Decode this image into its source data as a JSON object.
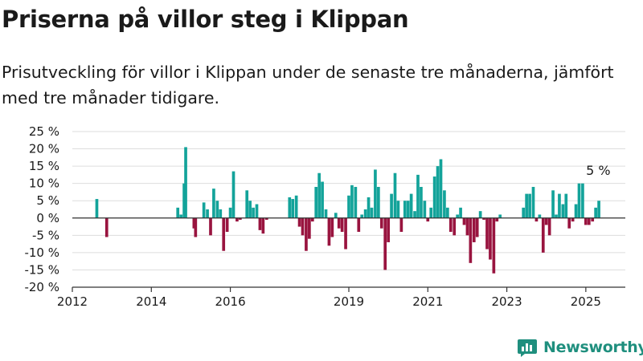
{
  "title": "Priserna på villor steg i Klippan",
  "subtitle": "Prisutveckling för villor i Klippan under de senaste tre månaderna, jämfört med tre månader tidigare.",
  "logo_text": "Newsworthy",
  "colors": {
    "positive": "#13a39a",
    "negative": "#99143f",
    "grid": "#dddddd",
    "axis": "#333333",
    "brand": "#1f8f7e"
  },
  "chart_data": {
    "type": "bar",
    "ylim": [
      -20,
      25
    ],
    "yticks": [
      -20,
      -15,
      -10,
      -5,
      0,
      5,
      10,
      15,
      20,
      25
    ],
    "ytick_labels": [
      "-20 %",
      "-15 %",
      "-10 %",
      "-5 %",
      "0 %",
      "5 %",
      "10 %",
      "15 %",
      "20 %",
      "25 %"
    ],
    "xlim": [
      2012.0,
      2026.0
    ],
    "xticks": [
      2012,
      2014,
      2016,
      2019,
      2021,
      2023,
      2025
    ],
    "xtick_labels": [
      "2012",
      "2014",
      "2016",
      "2019",
      "2021",
      "2023",
      "2025"
    ],
    "grid": true,
    "annotation": {
      "text": "5 %",
      "x": 2025.33,
      "y": 5
    },
    "x": [
      2012.62,
      2012.87,
      2014.67,
      2014.75,
      2014.83,
      2014.87,
      2014.92,
      2015.08,
      2015.12,
      2015.33,
      2015.42,
      2015.5,
      2015.58,
      2015.67,
      2015.75,
      2015.83,
      2015.92,
      2016.0,
      2016.08,
      2016.17,
      2016.25,
      2016.42,
      2016.5,
      2016.58,
      2016.67,
      2016.75,
      2016.83,
      2016.92,
      2017.5,
      2017.58,
      2017.67,
      2017.75,
      2017.83,
      2017.92,
      2018.0,
      2018.08,
      2018.17,
      2018.25,
      2018.33,
      2018.42,
      2018.5,
      2018.58,
      2018.67,
      2018.75,
      2018.83,
      2018.92,
      2019.0,
      2019.08,
      2019.17,
      2019.25,
      2019.33,
      2019.42,
      2019.5,
      2019.58,
      2019.67,
      2019.75,
      2019.83,
      2019.92,
      2020.0,
      2020.08,
      2020.17,
      2020.25,
      2020.33,
      2020.42,
      2020.5,
      2020.58,
      2020.67,
      2020.75,
      2020.83,
      2020.92,
      2021.0,
      2021.08,
      2021.17,
      2021.25,
      2021.33,
      2021.42,
      2021.5,
      2021.58,
      2021.67,
      2021.75,
      2021.83,
      2021.92,
      2022.0,
      2022.08,
      2022.17,
      2022.25,
      2022.33,
      2022.42,
      2022.5,
      2022.58,
      2022.67,
      2022.75,
      2022.83,
      2023.42,
      2023.5,
      2023.58,
      2023.67,
      2023.75,
      2023.83,
      2023.92,
      2024.0,
      2024.08,
      2024.17,
      2024.25,
      2024.33,
      2024.42,
      2024.5,
      2024.58,
      2024.67,
      2024.75,
      2024.83,
      2024.92,
      2025.0,
      2025.08,
      2025.17,
      2025.25,
      2025.33
    ],
    "values": [
      5.5,
      -5.5,
      3,
      1,
      10,
      20.5,
      0,
      -3,
      -5.5,
      4.5,
      2.5,
      -5,
      8.5,
      5,
      2.5,
      -9.5,
      -4,
      3,
      13.5,
      -1,
      -0.5,
      8,
      5,
      3,
      4,
      -3.5,
      -4.5,
      -0.5,
      6,
      5.5,
      6.5,
      -2.5,
      -5,
      -9.5,
      -6,
      -1,
      9,
      13,
      10.5,
      2.5,
      -8,
      -5.5,
      1.5,
      -3,
      -4,
      -9,
      6.5,
      9.5,
      9,
      -4,
      1,
      2.5,
      6,
      3,
      14,
      9,
      -3,
      -15,
      -7,
      7,
      13,
      5,
      -4,
      5,
      5,
      7,
      2,
      12.5,
      9,
      5,
      -1,
      3,
      12,
      15,
      17,
      8,
      3,
      -4,
      -5,
      1,
      3,
      -2,
      -5,
      -13,
      -7,
      -5.5,
      2,
      -0.5,
      -9,
      -12,
      -16,
      -1,
      1,
      3,
      7,
      7,
      9,
      -1,
      1,
      -10,
      -2,
      -5,
      8,
      1,
      7,
      4,
      7,
      -3,
      -1,
      4,
      10,
      10,
      -2,
      -2,
      -1,
      3,
      5
    ]
  }
}
